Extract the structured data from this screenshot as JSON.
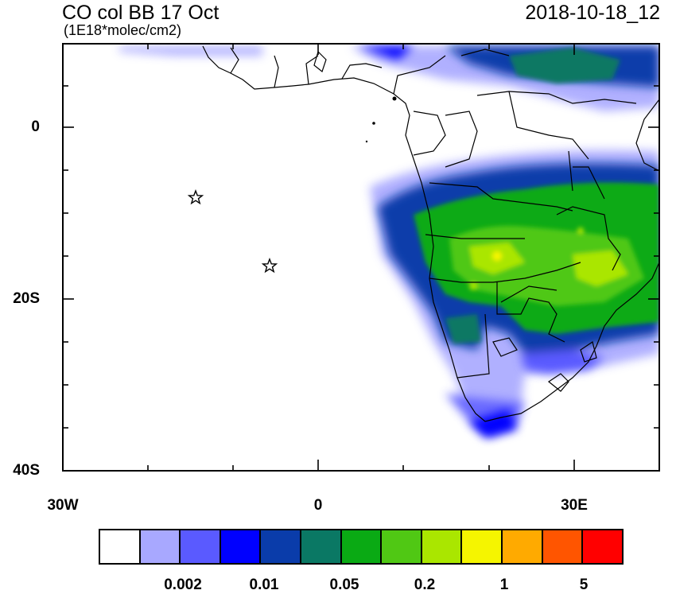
{
  "header": {
    "title": "CO col BB 17 Oct",
    "units": "(1E18*molec/cm2)",
    "date": "2018-10-18_12"
  },
  "axes": {
    "lat_labels": [
      "0",
      "20S",
      "40S"
    ],
    "lon_labels": [
      "30W",
      "0",
      "30E"
    ]
  },
  "colorbar": {
    "colors": [
      "#ffffff",
      "#a8a8ff",
      "#5a5aff",
      "#0000ff",
      "#0a3caa",
      "#0a7864",
      "#0aaa14",
      "#50c814",
      "#aae600",
      "#f5f500",
      "#ffaa00",
      "#ff5500",
      "#ff0000"
    ],
    "labels": [
      "0.002",
      "0.01",
      "0.05",
      "0.2",
      "1",
      "5"
    ]
  },
  "markers": {
    "stars": [
      "ascension-star",
      "st-helena-star"
    ]
  }
}
